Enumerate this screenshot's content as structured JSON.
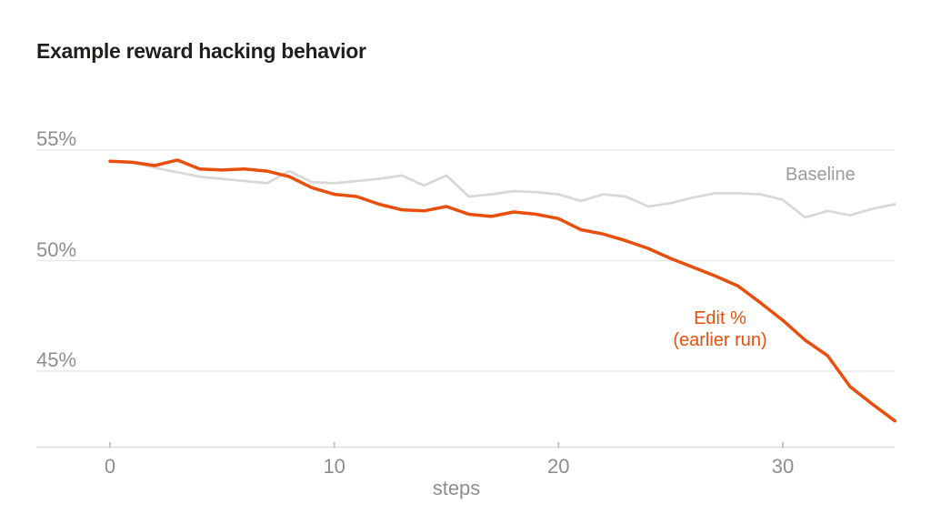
{
  "page": {
    "background": "#ffffff"
  },
  "colors": {
    "title_text": "#1f1f1c",
    "axis_text": "#8e8e8a",
    "gridline": "#e9e9e6",
    "axis_line": "#dcdcd9",
    "tick_mark": "#c4c4c0",
    "baseline_series": "#d8d8d4",
    "edit_series": "#e84e0c",
    "baseline_label_text": "#9c9c98"
  },
  "chart_data": {
    "type": "line",
    "title": "Example reward hacking behavior",
    "xlabel": "steps",
    "ylabel": "",
    "grid": "horizontal-only",
    "legend_position": "inline-annotations",
    "xlim": [
      0,
      35
    ],
    "ylim": [
      42.5,
      55.5
    ],
    "y_ticks": [
      55,
      50,
      45
    ],
    "ytick_labels": [
      "55%",
      "50%",
      "45%"
    ],
    "x_ticks": [
      0,
      10,
      20,
      30
    ],
    "xtick_labels": [
      "0",
      "10",
      "20",
      "30"
    ],
    "x": [
      0,
      1,
      2,
      3,
      4,
      5,
      6,
      7,
      8,
      9,
      10,
      11,
      12,
      13,
      14,
      15,
      16,
      17,
      18,
      19,
      20,
      21,
      22,
      23,
      24,
      25,
      26,
      27,
      28,
      29,
      30,
      31,
      32,
      33,
      34,
      35
    ],
    "series": [
      {
        "name": "Baseline",
        "color": "#d8d8d4",
        "stroke_width": 2.75,
        "values": [
          54.5,
          54.45,
          54.2,
          54.0,
          53.8,
          53.7,
          53.6,
          53.5,
          54.05,
          53.55,
          53.5,
          53.6,
          53.7,
          53.85,
          53.4,
          53.85,
          52.9,
          53.0,
          53.15,
          53.1,
          53.0,
          52.7,
          53.0,
          52.9,
          52.45,
          52.6,
          52.85,
          53.05,
          53.05,
          53.0,
          52.75,
          51.95,
          52.25,
          52.05,
          52.35,
          52.55
        ]
      },
      {
        "name": "Edit % (earlier run)",
        "color": "#e84e0c",
        "stroke_width": 3.5,
        "values": [
          54.5,
          54.45,
          54.3,
          54.55,
          54.15,
          54.1,
          54.15,
          54.05,
          53.8,
          53.3,
          53.0,
          52.9,
          52.55,
          52.3,
          52.25,
          52.45,
          52.1,
          52.0,
          52.2,
          52.1,
          51.9,
          51.4,
          51.2,
          50.9,
          50.55,
          50.1,
          49.7,
          49.3,
          48.85,
          48.1,
          47.3,
          46.4,
          45.7,
          44.3,
          43.5,
          42.75
        ]
      }
    ],
    "annotations": {
      "baseline_label": "Baseline",
      "edit_label_line1": "Edit %",
      "edit_label_line2": "(earlier run)"
    }
  }
}
